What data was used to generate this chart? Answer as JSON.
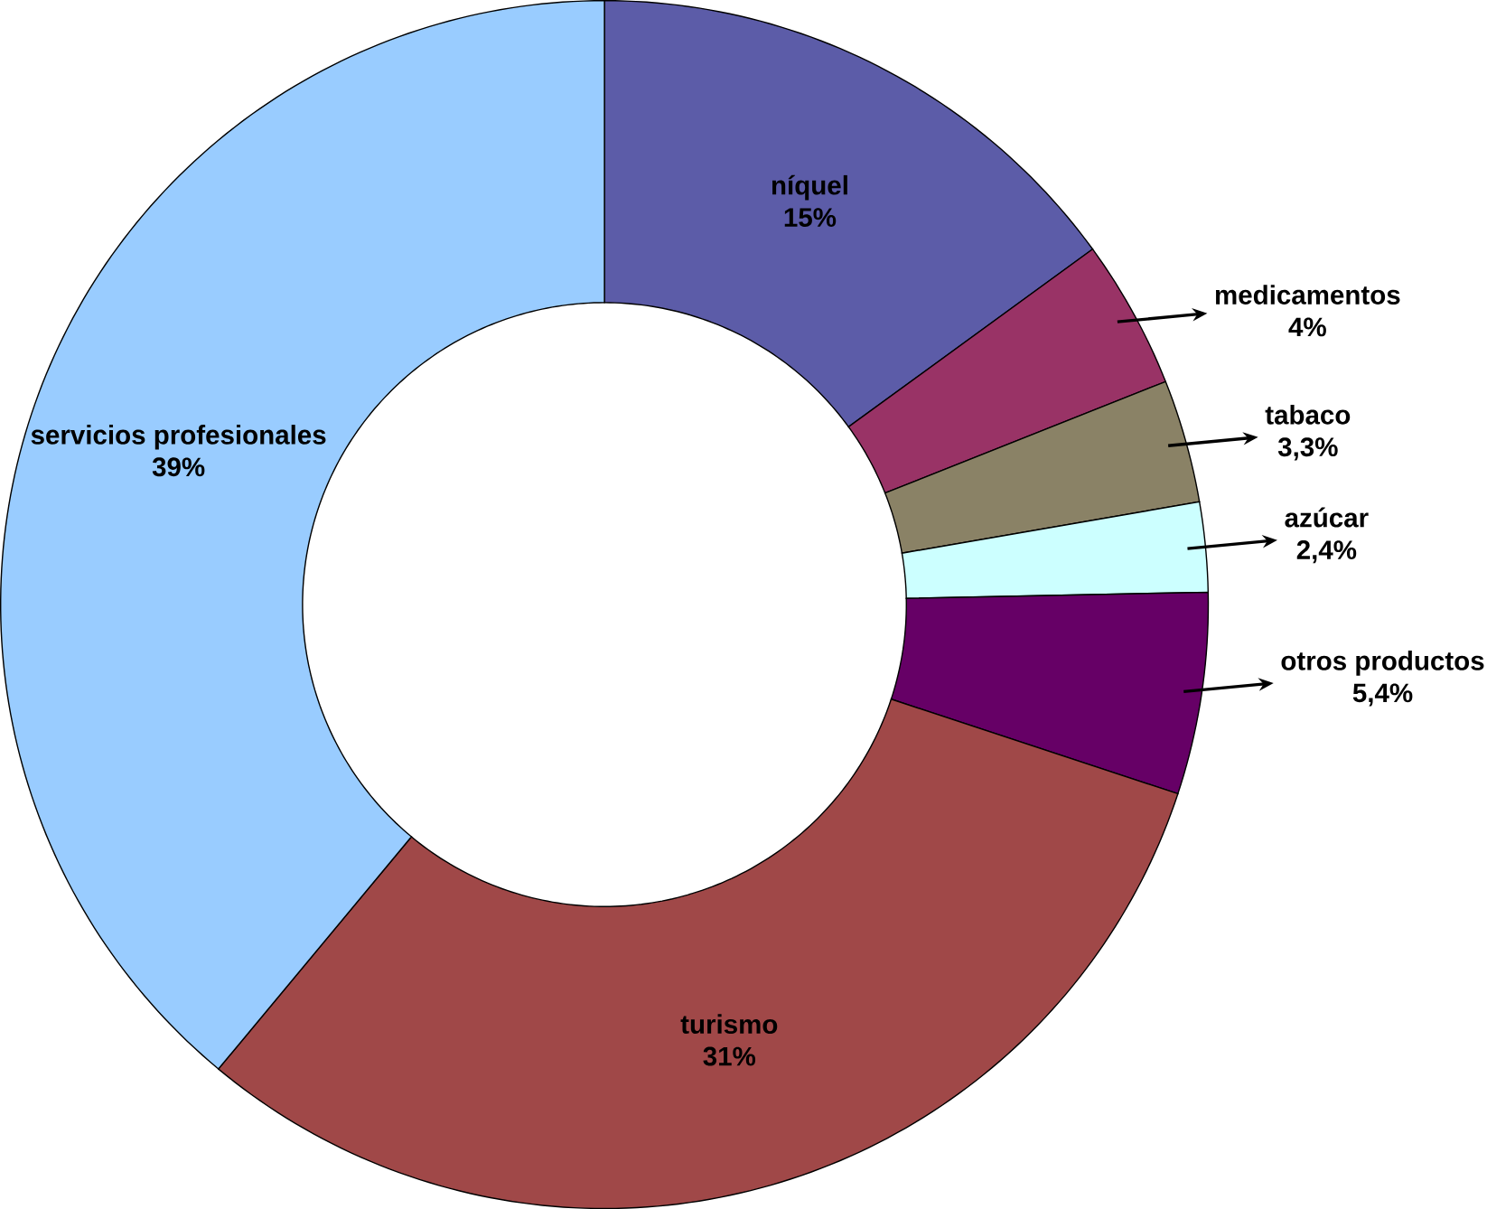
{
  "chart_data": {
    "type": "donut",
    "categories": [
      "níquel",
      "medicamentos",
      "tabaco",
      "azúcar",
      "otros productos",
      "turismo",
      "servicios profesionales"
    ],
    "values": [
      15,
      4,
      3.3,
      2.4,
      5.4,
      31,
      39
    ],
    "value_labels": [
      "15%",
      "4%",
      "3,3%",
      "2,4%",
      "5,4%",
      "31%",
      "39%"
    ],
    "colors": [
      "#5c5ca8",
      "#993366",
      "#8a8266",
      "#ccffff",
      "#660066",
      "#a04848",
      "#99ccff"
    ],
    "legend": false
  }
}
